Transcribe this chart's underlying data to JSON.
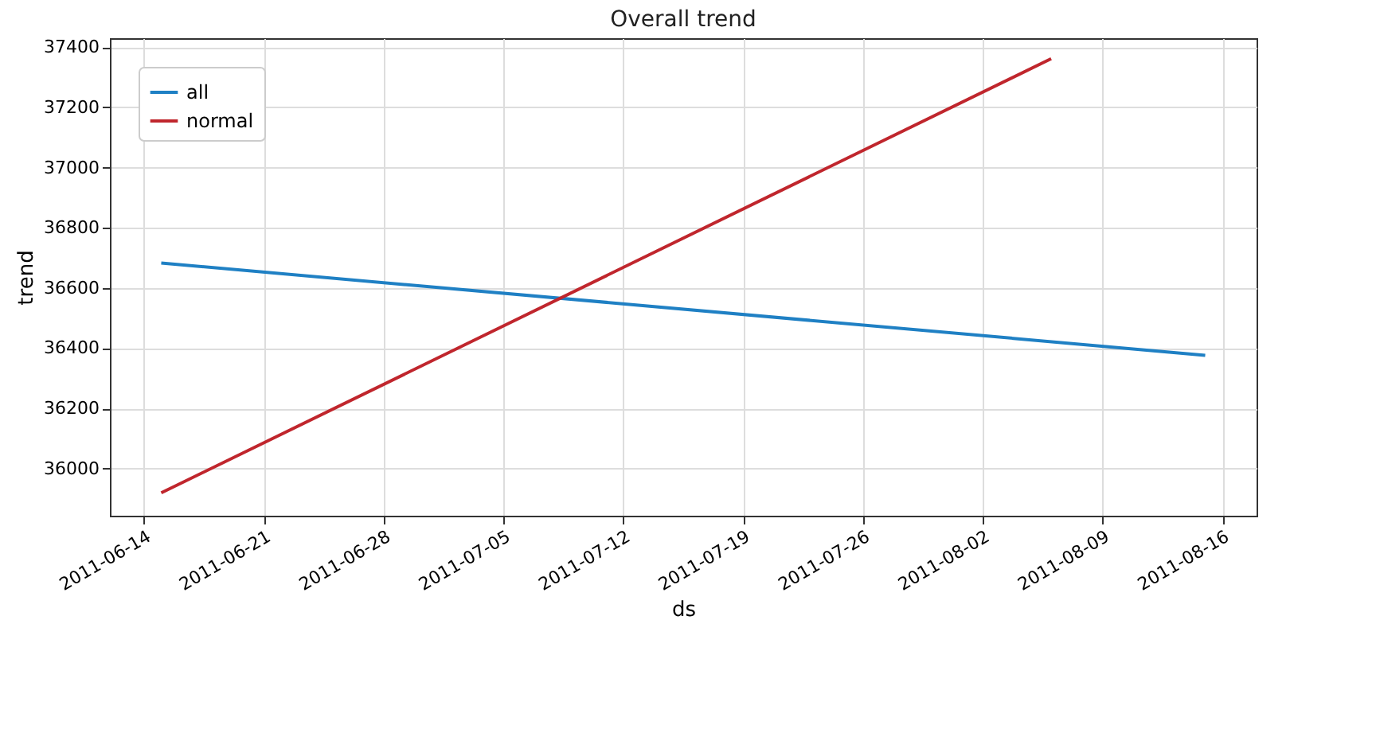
{
  "chart_data": {
    "type": "line",
    "title": "Overall trend",
    "xlabel": "ds",
    "ylabel": "trend",
    "series": [
      {
        "name": "all",
        "color": "#1f80c4",
        "x": [
          "2011-06-15",
          "2011-08-15"
        ],
        "values": [
          36683,
          36376
        ]
      },
      {
        "name": "normal",
        "color": "#c0262d",
        "x": [
          "2011-06-15",
          "2011-08-06"
        ],
        "values": [
          35919,
          37362
        ]
      }
    ],
    "xlim": [
      "2011-06-12",
      "2011-08-18"
    ],
    "xticks": [
      "2011-06-14",
      "2011-06-21",
      "2011-06-28",
      "2011-07-05",
      "2011-07-12",
      "2011-07-19",
      "2011-07-26",
      "2011-08-02",
      "2011-08-09",
      "2011-08-16"
    ],
    "ylim": [
      35843,
      37430
    ],
    "yticks": [
      36000,
      36200,
      36400,
      36600,
      36800,
      37000,
      37200,
      37400
    ],
    "grid": true,
    "legend": "top left",
    "line_style": "solid",
    "marker": "none"
  }
}
